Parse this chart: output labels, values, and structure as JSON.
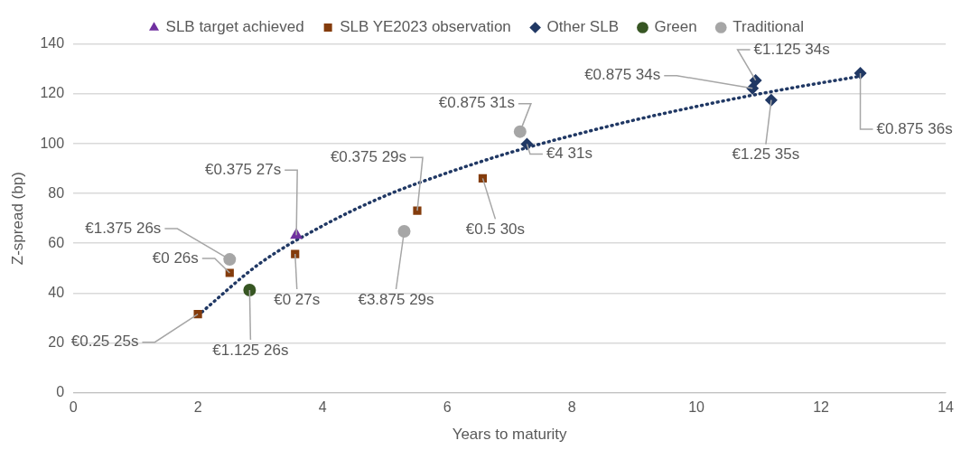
{
  "chart_data": {
    "type": "scatter",
    "xlabel": "Years to maturity",
    "ylabel": "Z-spread (bp)",
    "xlim": [
      0,
      14
    ],
    "xticks": [
      0,
      2,
      4,
      6,
      8,
      10,
      12,
      14
    ],
    "ylim": [
      0,
      140
    ],
    "yticks": [
      0,
      20,
      40,
      60,
      80,
      100,
      120,
      140
    ],
    "grid": "y",
    "legend": "top",
    "series": [
      {
        "name": "SLB target achieved",
        "color": "#7030a0",
        "marker": "triangle",
        "x": [
          3.58
        ],
        "values": [
          63.3
        ]
      },
      {
        "name": "SLB YE2023 observation",
        "color": "#843c0c",
        "marker": "square",
        "x": [
          2.0,
          2.51,
          3.56,
          5.52,
          6.57
        ],
        "values": [
          31.5,
          48.1,
          55.7,
          73.1,
          86.1
        ]
      },
      {
        "name": "Other SLB",
        "color": "#203864",
        "marker": "diamond",
        "x": [
          7.28,
          10.9,
          10.95,
          11.2,
          12.63
        ],
        "values": [
          99.9,
          122.3,
          125.5,
          117.6,
          128.4
        ]
      },
      {
        "name": "Green",
        "color": "#375623",
        "marker": "circle",
        "x": [
          2.83
        ],
        "values": [
          41.2
        ]
      },
      {
        "name": "Traditional",
        "color": "#a6a6a6",
        "marker": "circle",
        "x": [
          2.51,
          5.31,
          7.17
        ],
        "values": [
          53.5,
          64.8,
          104.9
        ]
      },
      {
        "type": "line",
        "color": "#203864",
        "line_style": "dotted",
        "marker": "none",
        "x": [
          2,
          3,
          4,
          5,
          6,
          7,
          8,
          9,
          10,
          11,
          12,
          12.6
        ],
        "values": [
          31,
          52,
          67,
          79,
          88.3,
          96.4,
          103.3,
          109.5,
          115,
          120,
          124.5,
          127
        ]
      }
    ],
    "annotations": [
      {
        "text": "€0.25 25s",
        "x": 2.0,
        "y": 31.5
      },
      {
        "text": "€1.125 26s",
        "x": 2.83,
        "y": 41.2
      },
      {
        "text": "€0 26s",
        "x": 2.51,
        "y": 48.1
      },
      {
        "text": "€1.375 26s",
        "x": 2.51,
        "y": 53.5
      },
      {
        "text": "€0.375 27s",
        "x": 3.58,
        "y": 63.3
      },
      {
        "text": "€0 27s",
        "x": 3.56,
        "y": 55.7
      },
      {
        "text": "€3.875 29s",
        "x": 5.31,
        "y": 64.8
      },
      {
        "text": "€0.375 29s",
        "x": 5.52,
        "y": 73.1
      },
      {
        "text": "€0.5 30s",
        "x": 6.57,
        "y": 86.1
      },
      {
        "text": "€0.875 31s",
        "x": 7.17,
        "y": 104.9
      },
      {
        "text": "€4 31s",
        "x": 7.28,
        "y": 99.9
      },
      {
        "text": "€0.875 34s",
        "x": 10.9,
        "y": 122.3
      },
      {
        "text": "€1.125 34s",
        "x": 10.95,
        "y": 125.5
      },
      {
        "text": "€1.25 35s",
        "x": 11.2,
        "y": 117.6
      },
      {
        "text": "€0.875 36s",
        "x": 12.63,
        "y": 128.4
      }
    ]
  }
}
